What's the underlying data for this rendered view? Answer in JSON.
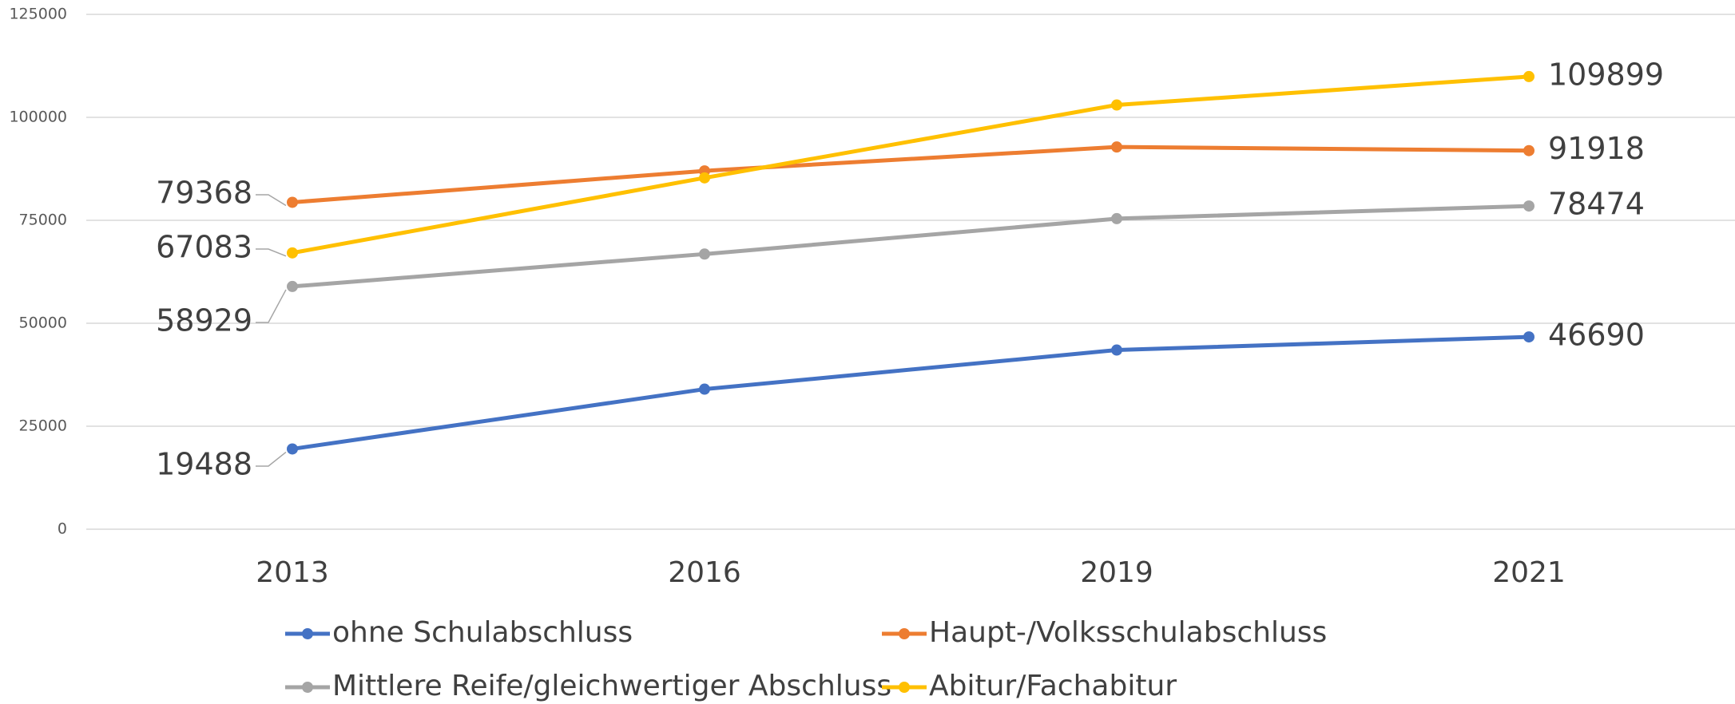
{
  "chart_data": {
    "type": "line",
    "categories": [
      "2013",
      "2016",
      "2019",
      "2021"
    ],
    "series": [
      {
        "name": "ohne Schulabschluss",
        "color": "#4472c4",
        "values": [
          19488,
          34000,
          43500,
          46690
        ]
      },
      {
        "name": "Haupt-/Volksschulabschluss",
        "color": "#ed7d31",
        "values": [
          79368,
          87000,
          92800,
          91918
        ]
      },
      {
        "name": "Mittlere Reife/gleichwertiger Abschluss",
        "color": "#a5a5a5",
        "values": [
          58929,
          66800,
          75400,
          78474
        ]
      },
      {
        "name": "Abitur/Fachabitur",
        "color": "#ffc000",
        "values": [
          67083,
          85300,
          103000,
          109899
        ]
      }
    ],
    "ylim": [
      0,
      125000
    ],
    "yticks": [
      0,
      25000,
      50000,
      75000,
      100000,
      125000
    ],
    "grid": true,
    "legend": "bottom"
  }
}
